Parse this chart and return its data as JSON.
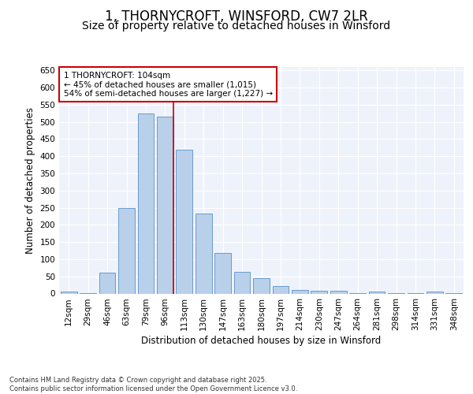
{
  "title": "1, THORNYCROFT, WINSFORD, CW7 2LR",
  "subtitle": "Size of property relative to detached houses in Winsford",
  "xlabel": "Distribution of detached houses by size in Winsford",
  "ylabel": "Number of detached properties",
  "categories": [
    "12sqm",
    "29sqm",
    "46sqm",
    "63sqm",
    "79sqm",
    "96sqm",
    "113sqm",
    "130sqm",
    "147sqm",
    "163sqm",
    "180sqm",
    "197sqm",
    "214sqm",
    "230sqm",
    "247sqm",
    "264sqm",
    "281sqm",
    "298sqm",
    "314sqm",
    "331sqm",
    "348sqm"
  ],
  "values": [
    5,
    2,
    60,
    248,
    525,
    515,
    420,
    232,
    118,
    62,
    45,
    22,
    10,
    9,
    7,
    2,
    5,
    2,
    2,
    5,
    2
  ],
  "bar_color": "#b8d0ea",
  "bar_edge_color": "#5b8fc9",
  "vline_color": "#cc0000",
  "vline_pos": 5.45,
  "annotation_lines": [
    "1 THORNYCROFT: 104sqm",
    "← 45% of detached houses are smaller (1,015)",
    "54% of semi-detached houses are larger (1,227) →"
  ],
  "annotation_box_color": "#cc0000",
  "ylim": [
    0,
    660
  ],
  "yticks": [
    0,
    50,
    100,
    150,
    200,
    250,
    300,
    350,
    400,
    450,
    500,
    550,
    600,
    650
  ],
  "background_color": "#eef2fb",
  "footer": "Contains HM Land Registry data © Crown copyright and database right 2025.\nContains public sector information licensed under the Open Government Licence v3.0.",
  "title_fontsize": 12,
  "subtitle_fontsize": 10,
  "axis_label_fontsize": 8.5,
  "tick_fontsize": 7.5,
  "annotation_fontsize": 7.5,
  "footer_fontsize": 6
}
